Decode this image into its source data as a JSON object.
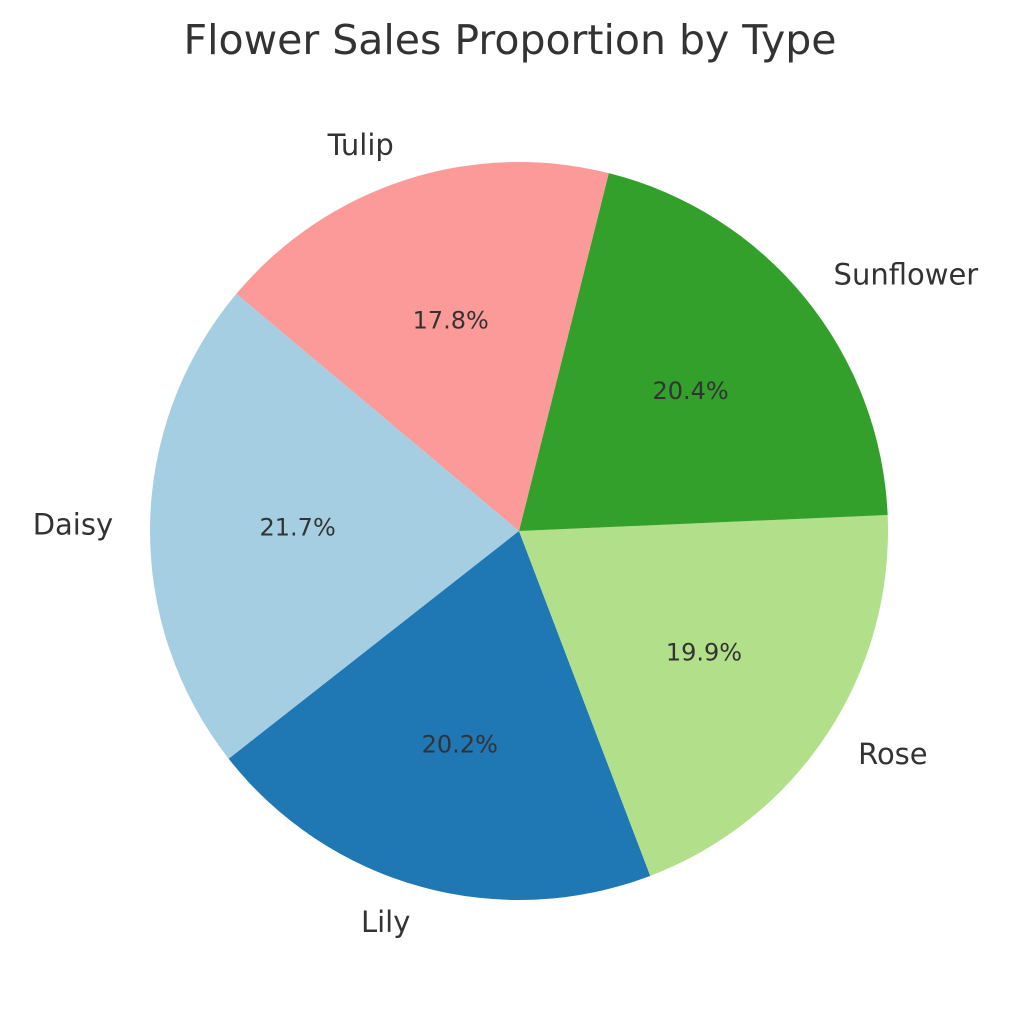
{
  "chart_data": {
    "type": "pie",
    "title": "Flower Sales Proportion by Type",
    "categories": [
      "Daisy",
      "Lily",
      "Rose",
      "Sunflower",
      "Tulip"
    ],
    "values": [
      21.7,
      20.2,
      19.9,
      20.4,
      17.8
    ],
    "percent_labels": [
      "21.7%",
      "20.2%",
      "19.9%",
      "20.4%",
      "17.8%"
    ],
    "colors": [
      "#a6cee3",
      "#1f78b4",
      "#b2df8a",
      "#33a02c",
      "#fb9a99"
    ],
    "start_angle_deg": 140,
    "direction": "counterclockwise",
    "legend": "none"
  }
}
